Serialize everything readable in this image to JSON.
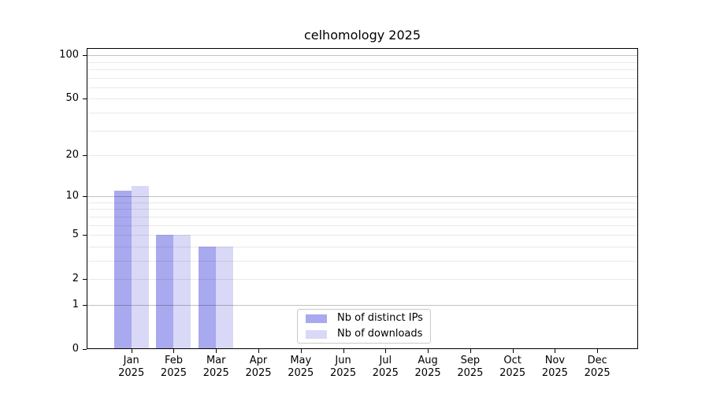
{
  "chart_data": {
    "type": "bar",
    "title": "celhomology 2025",
    "categories": [
      "Jan 2025",
      "Feb 2025",
      "Mar 2025",
      "Apr 2025",
      "May 2025",
      "Jun 2025",
      "Jul 2025",
      "Aug 2025",
      "Sep 2025",
      "Oct 2025",
      "Nov 2025",
      "Dec 2025"
    ],
    "series": [
      {
        "name": "Nb of distinct IPs",
        "color": "#a9a9ef",
        "values": [
          11,
          5,
          4,
          0,
          0,
          0,
          0,
          0,
          0,
          0,
          0,
          0
        ]
      },
      {
        "name": "Nb of downloads",
        "color": "#d9d9f7",
        "values": [
          12,
          5,
          4,
          0,
          0,
          0,
          0,
          0,
          0,
          0,
          0,
          0
        ]
      }
    ],
    "yscale": "log1p",
    "ylim": [
      0,
      112
    ],
    "ytick_values": [
      0,
      1,
      2,
      5,
      10,
      20,
      50,
      100
    ],
    "ytick_labels": [
      "0",
      "1",
      "2",
      "5",
      "10",
      "20",
      "50",
      "100"
    ],
    "major_grid_values": [
      1,
      10,
      100
    ],
    "minor_grid_values": [
      2,
      3,
      4,
      5,
      6,
      7,
      8,
      9,
      20,
      30,
      40,
      50,
      60,
      70,
      80,
      90
    ],
    "grid": "horizontal",
    "legend_position": "lower center",
    "colors": {
      "axis": "#000000",
      "major_grid": "rgba(0,0,0,0.24)",
      "minor_grid": "rgba(0,0,0,0.085)",
      "legend_border": "#c9c9c9",
      "background": "#ffffff",
      "text": "#000000"
    }
  }
}
